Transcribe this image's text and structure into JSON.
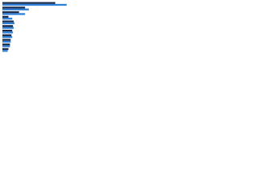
{
  "chart_data": {
    "type": "hbar",
    "categories": [
      null,
      null,
      null,
      null,
      null,
      null,
      null,
      null,
      null,
      null,
      null
    ],
    "series": [
      {
        "color": "#1b2b4b",
        "values": [
          70,
          30,
          22,
          8,
          15,
          14,
          13,
          12,
          11,
          10,
          8
        ]
      },
      {
        "color": "#2f7ed8",
        "values": [
          85,
          35,
          30,
          13,
          16,
          15,
          14,
          13,
          11,
          10,
          7
        ]
      }
    ],
    "xlim": [
      0,
      100
    ]
  }
}
